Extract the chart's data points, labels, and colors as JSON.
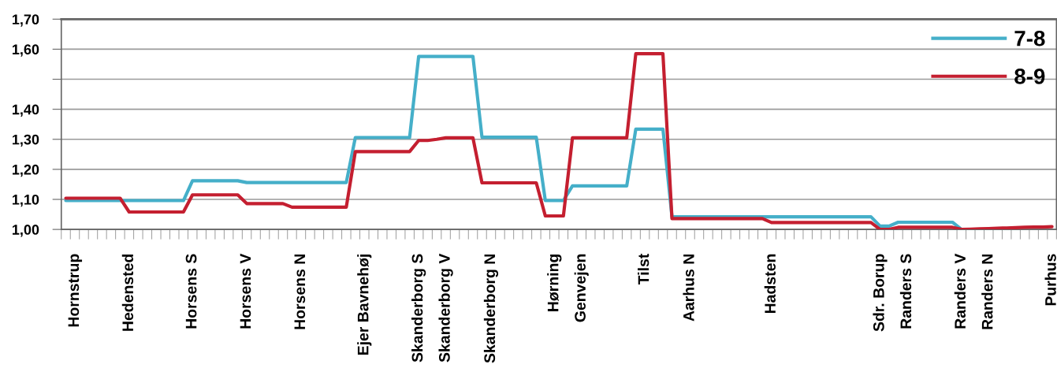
{
  "chart_data": {
    "type": "line",
    "categories": [
      null,
      "Hornstrup",
      null,
      null,
      null,
      null,
      null,
      "Hedensted",
      null,
      null,
      null,
      null,
      null,
      null,
      "Horsens S",
      null,
      null,
      null,
      null,
      null,
      "Horsens V",
      null,
      null,
      null,
      null,
      null,
      "Horsens N",
      null,
      null,
      null,
      null,
      null,
      null,
      "Ejer Bavnehøj",
      null,
      null,
      null,
      null,
      null,
      "Skanderborg S",
      null,
      null,
      "Skanderborg V",
      null,
      null,
      null,
      null,
      "Skanderborg N",
      null,
      null,
      null,
      null,
      null,
      null,
      "Hørning",
      null,
      null,
      "Genvejen",
      null,
      null,
      null,
      null,
      null,
      null,
      "Tilst",
      null,
      null,
      null,
      null,
      "Aarhus N",
      null,
      null,
      null,
      null,
      null,
      null,
      null,
      null,
      "Hadsten",
      null,
      null,
      null,
      null,
      null,
      null,
      null,
      null,
      null,
      null,
      null,
      "Sdr. Borup",
      null,
      null,
      "Randers S",
      null,
      null,
      null,
      null,
      null,
      "Randers V",
      null,
      null,
      "Randers N",
      null,
      null,
      null,
      null,
      null,
      null,
      "Purhus"
    ],
    "series": [
      {
        "name": "7-8",
        "color": "#45afc9",
        "values": [
          1.096,
          1.096,
          1.096,
          1.096,
          1.096,
          1.096,
          1.096,
          1.096,
          1.096,
          1.096,
          1.096,
          1.096,
          1.096,
          1.096,
          1.162,
          1.162,
          1.162,
          1.162,
          1.162,
          1.162,
          1.156,
          1.156,
          1.156,
          1.156,
          1.156,
          1.156,
          1.156,
          1.156,
          1.156,
          1.156,
          1.156,
          1.156,
          1.306,
          1.306,
          1.306,
          1.306,
          1.306,
          1.306,
          1.306,
          1.576,
          1.576,
          1.576,
          1.576,
          1.576,
          1.576,
          1.576,
          1.307,
          1.307,
          1.307,
          1.307,
          1.307,
          1.307,
          1.307,
          1.096,
          1.096,
          1.096,
          1.145,
          1.145,
          1.145,
          1.145,
          1.145,
          1.145,
          1.145,
          1.334,
          1.334,
          1.334,
          1.334,
          1.042,
          1.042,
          1.042,
          1.042,
          1.042,
          1.042,
          1.042,
          1.042,
          1.042,
          1.042,
          1.042,
          1.042,
          1.042,
          1.042,
          1.042,
          1.042,
          1.042,
          1.042,
          1.042,
          1.042,
          1.042,
          1.042,
          1.042,
          1.011,
          1.011,
          1.024,
          1.024,
          1.024,
          1.024,
          1.024,
          1.024,
          1.024,
          1.0,
          null,
          null,
          null,
          null,
          null,
          null,
          null,
          null,
          null,
          null
        ]
      },
      {
        "name": "8-9",
        "color": "#c41f30",
        "values": [
          1.104,
          1.104,
          1.104,
          1.104,
          1.104,
          1.104,
          1.104,
          1.058,
          1.058,
          1.058,
          1.058,
          1.058,
          1.058,
          1.058,
          1.115,
          1.115,
          1.115,
          1.115,
          1.115,
          1.115,
          1.086,
          1.086,
          1.086,
          1.086,
          1.086,
          1.074,
          1.074,
          1.074,
          1.074,
          1.074,
          1.074,
          1.074,
          1.259,
          1.259,
          1.259,
          1.259,
          1.259,
          1.259,
          1.259,
          1.296,
          1.296,
          1.3,
          1.305,
          1.305,
          1.305,
          1.305,
          1.155,
          1.155,
          1.155,
          1.155,
          1.155,
          1.155,
          1.155,
          1.045,
          1.045,
          1.045,
          1.305,
          1.305,
          1.305,
          1.305,
          1.305,
          1.305,
          1.305,
          1.585,
          1.585,
          1.585,
          1.585,
          1.036,
          1.036,
          1.036,
          1.036,
          1.036,
          1.036,
          1.036,
          1.036,
          1.036,
          1.036,
          1.036,
          1.023,
          1.023,
          1.023,
          1.023,
          1.023,
          1.023,
          1.023,
          1.023,
          1.023,
          1.023,
          1.023,
          1.023,
          1.0,
          1.0,
          1.007,
          1.007,
          1.007,
          1.007,
          1.007,
          1.007,
          1.007,
          1.0,
          1.001,
          1.002,
          1.003,
          1.004,
          1.005,
          1.006,
          1.007,
          1.008,
          1.008,
          1.009
        ]
      }
    ],
    "ylim": [
      1.0,
      1.7
    ],
    "yticks": [
      {
        "value": 1.0,
        "label": "1,00"
      },
      {
        "value": 1.1,
        "label": "1,10"
      },
      {
        "value": 1.2,
        "label": "1,20"
      },
      {
        "value": 1.3,
        "label": "1,30"
      },
      {
        "value": 1.4,
        "label": "1,40"
      },
      {
        "value": 1.5,
        "label": null
      },
      {
        "value": 1.6,
        "label": "1,60"
      },
      {
        "value": 1.7,
        "label": "1,70"
      }
    ],
    "grid": "y",
    "legend": "top right",
    "marker": "none",
    "line_style": "solid"
  }
}
